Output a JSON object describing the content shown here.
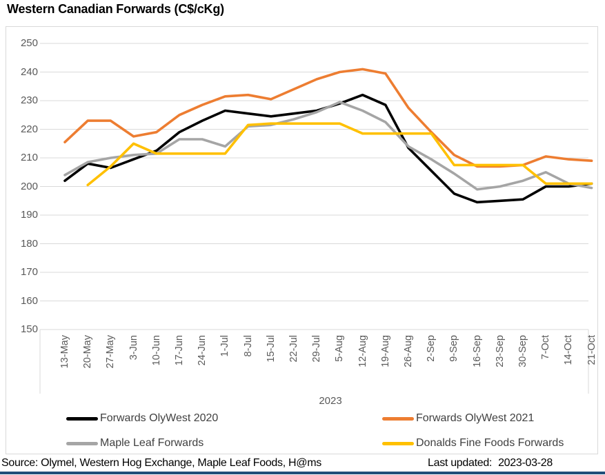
{
  "header": {
    "title": "Western Canadian Forwards (C$/cKg)"
  },
  "chart_data": {
    "type": "line",
    "title": "Western Canadian Forwards (C$/cKg)",
    "xlabel": "2023",
    "ylabel": "",
    "ylim": [
      150,
      250
    ],
    "y_ticks": [
      250,
      240,
      230,
      220,
      210,
      200,
      190,
      180,
      170,
      160,
      150
    ],
    "grid": true,
    "legend_position": "bottom",
    "year_label": "2023",
    "categories": [
      "13-May",
      "20-May",
      "27-May",
      "3-Jun",
      "10-Jun",
      "17-Jun",
      "24-Jun",
      "1-Jul",
      "8-Jul",
      "15-Jul",
      "22-Jul",
      "29-Jul",
      "5-Aug",
      "12-Aug",
      "19-Aug",
      "26-Aug",
      "2-Sep",
      "9-Sep",
      "16-Sep",
      "23-Sep",
      "30-Sep",
      "7-Oct",
      "14-Oct",
      "21-Oct"
    ],
    "series": [
      {
        "name": "Forwards OlyWest 2020",
        "color": "#000000",
        "values": [
          202,
          208,
          206.5,
          209.5,
          212.5,
          219,
          223,
          226.5,
          225.5,
          224.5,
          225.5,
          226.5,
          229,
          232,
          228.5,
          213.5,
          205.5,
          197.5,
          194.5,
          195,
          195.5,
          200,
          200,
          201
        ]
      },
      {
        "name": "Forwards OlyWest 2021",
        "color": "#ED7D31",
        "values": [
          215.5,
          223,
          223,
          217.5,
          219,
          225,
          228.5,
          231.5,
          232,
          230.5,
          234,
          237.5,
          240,
          241,
          239.5,
          227.5,
          219,
          211,
          207,
          207,
          207.5,
          210.5,
          209.5,
          209
        ]
      },
      {
        "name": "Maple Leaf Forwards",
        "color": "#A5A5A5",
        "values": [
          204,
          208.5,
          210,
          211,
          211.5,
          216.5,
          216.5,
          214,
          221,
          221.5,
          223.5,
          226,
          229.5,
          226.5,
          222.5,
          214,
          209.5,
          204.5,
          199,
          200,
          202,
          205,
          201,
          199.5
        ]
      },
      {
        "name": "Donalds Fine Foods Forwards",
        "color": "#FFC000",
        "values": [
          null,
          200.5,
          207,
          215,
          211.5,
          211.5,
          211.5,
          211.5,
          221.5,
          222,
          222,
          222,
          222,
          218.5,
          218.5,
          218.5,
          218.5,
          207.5,
          207.5,
          207.5,
          207.5,
          201,
          201,
          201
        ]
      }
    ]
  },
  "colors": {
    "grid": "#D9D9D9",
    "axis_text": "#595959",
    "legend_text": "#404040",
    "footer_rule": "#1F4E79",
    "chart_border": "#D9D9D9"
  },
  "footer": {
    "source": "Source: Olymel, Western Hog Exchange, Maple Leaf Foods, H@ms",
    "last_updated_label": "Last updated:",
    "last_updated_value": "2023-03-28"
  }
}
